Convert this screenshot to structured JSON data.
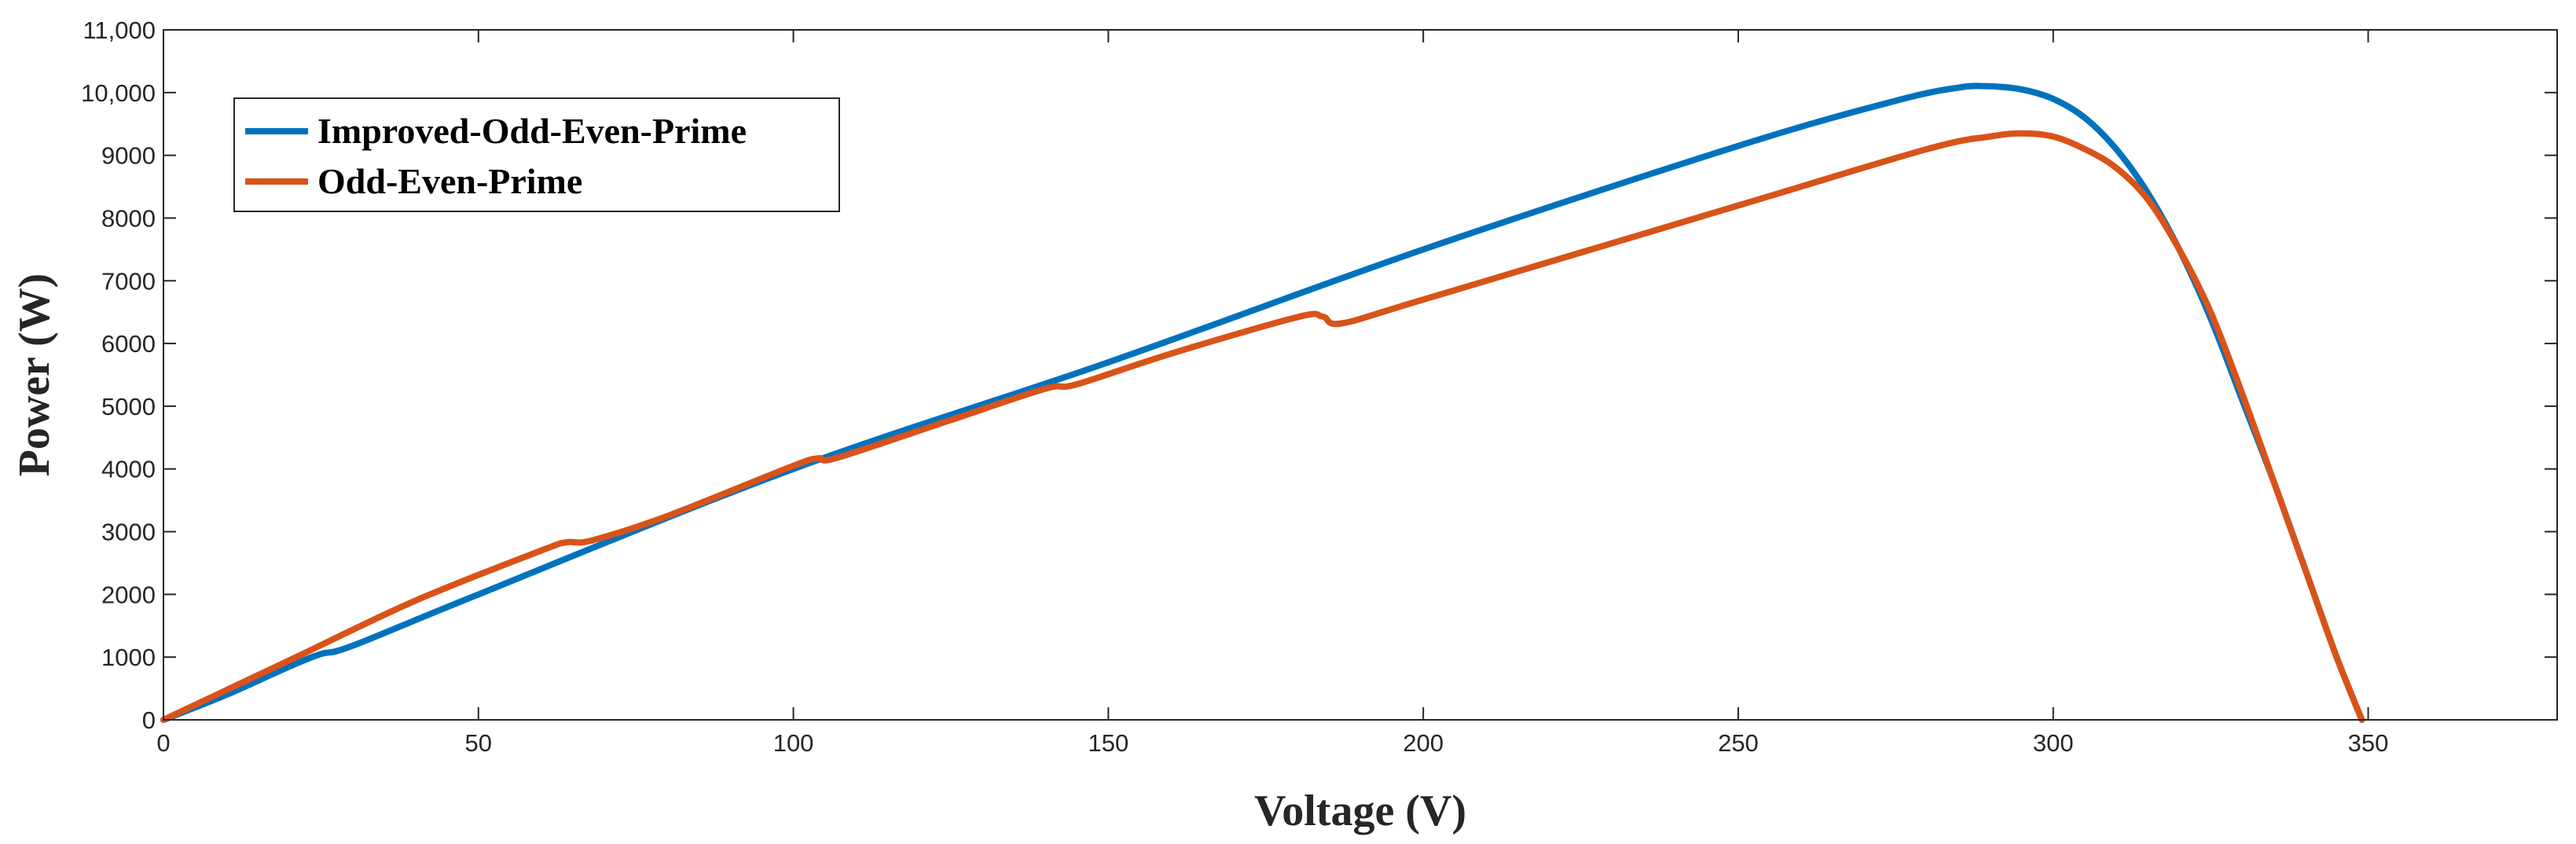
{
  "chart_data": {
    "type": "line",
    "title": "",
    "xlabel": "Voltage (V)",
    "ylabel": "Power (W)",
    "xlim": [
      0,
      380
    ],
    "ylim": [
      0,
      11000
    ],
    "grid": false,
    "legend_position": "top-left",
    "x_ticks": [
      0,
      50,
      100,
      150,
      200,
      250,
      300,
      350
    ],
    "x_tick_labels": [
      "0",
      "50",
      "100",
      "150",
      "200",
      "250",
      "300",
      "350"
    ],
    "y_ticks": [
      0,
      1000,
      2000,
      3000,
      4000,
      5000,
      6000,
      7000,
      8000,
      9000,
      10000,
      11000
    ],
    "y_tick_labels": [
      "0",
      "1000",
      "2000",
      "3000",
      "4000",
      "5000",
      "6000",
      "7000",
      "8000",
      "9000",
      "10,000",
      "11,000"
    ],
    "series": [
      {
        "name": "Improved-Odd-Even-Prime",
        "color": "#0072BD",
        "x": [
          0,
          10,
          20,
          25,
          30,
          50,
          100,
          150,
          200,
          250,
          275,
          285,
          290,
          295,
          300,
          305,
          310,
          315,
          320,
          325,
          330,
          335,
          340,
          345,
          349
        ],
        "y": [
          0,
          400,
          850,
          1050,
          1180,
          2000,
          4000,
          5700,
          7500,
          9150,
          9870,
          10080,
          10100,
          10050,
          9900,
          9600,
          9100,
          8400,
          7500,
          6400,
          5100,
          3800,
          2400,
          1000,
          0
        ]
      },
      {
        "name": "Odd-Even-Prime",
        "color": "#D95319",
        "x": [
          0,
          20,
          40,
          60,
          64,
          68,
          80,
          100,
          104,
          107,
          125,
          140,
          145,
          160,
          180,
          184,
          187,
          200,
          250,
          280,
          290,
          295,
          300,
          305,
          310,
          315,
          320,
          325,
          330,
          335,
          340,
          345,
          349
        ],
        "y": [
          0,
          950,
          1900,
          2700,
          2830,
          2860,
          3250,
          4050,
          4170,
          4180,
          4780,
          5280,
          5350,
          5840,
          6420,
          6430,
          6320,
          6700,
          8200,
          9100,
          9300,
          9350,
          9300,
          9100,
          8800,
          8300,
          7500,
          6500,
          5200,
          3800,
          2400,
          1000,
          0
        ]
      }
    ]
  }
}
